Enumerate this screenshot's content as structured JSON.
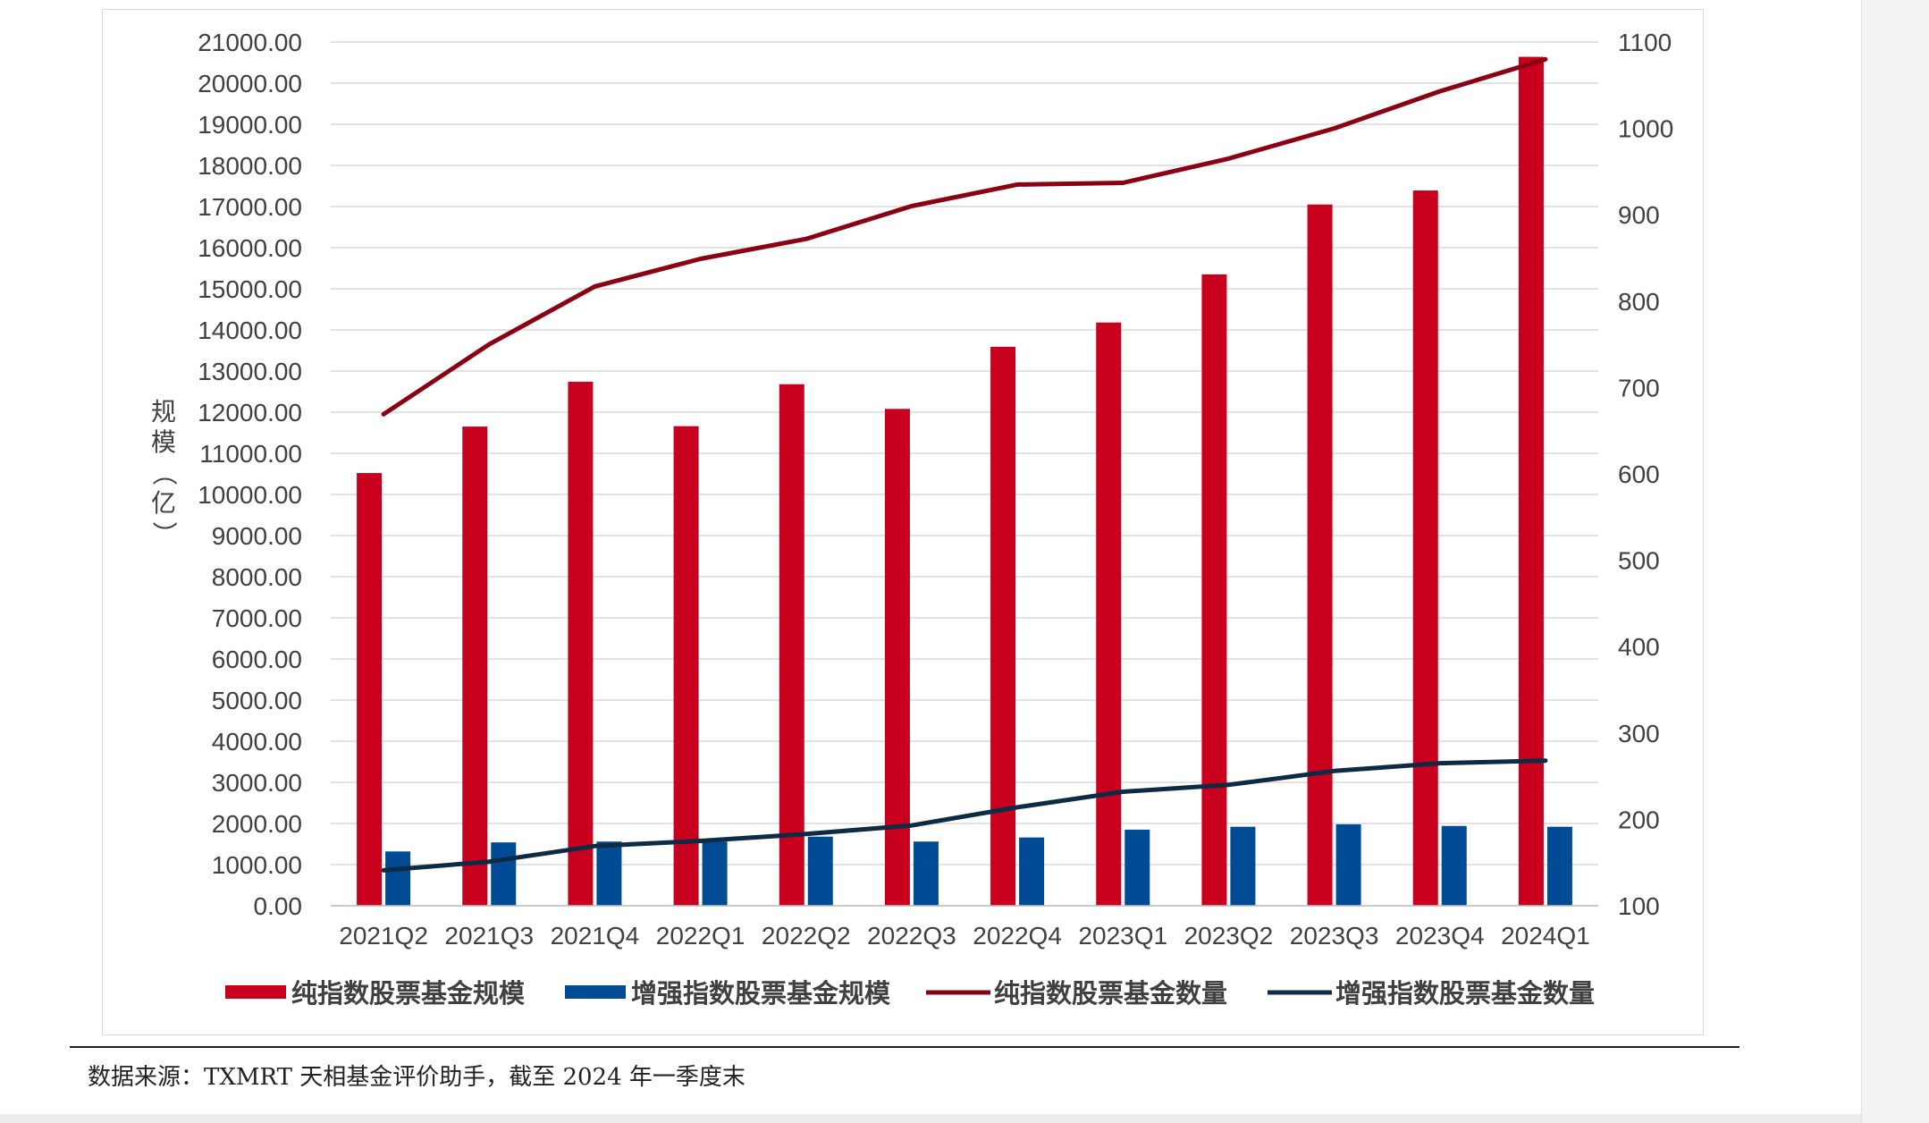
{
  "chart_data": {
    "type": "bar",
    "categories": [
      "2021Q2",
      "2021Q3",
      "2021Q4",
      "2022Q1",
      "2022Q2",
      "2022Q3",
      "2022Q4",
      "2023Q1",
      "2023Q2",
      "2023Q3",
      "2023Q4",
      "2024Q1"
    ],
    "series": [
      {
        "name": "纯指数股票基金规模",
        "kind": "bar",
        "axis": "left",
        "color": "#c8001e",
        "values": [
          10520,
          11650,
          12740,
          11660,
          12680,
          12080,
          13590,
          14180,
          15350,
          17050,
          17390,
          20640
        ]
      },
      {
        "name": "增强指数股票基金规模",
        "kind": "bar",
        "axis": "left",
        "color": "#004b93",
        "values": [
          1320,
          1540,
          1560,
          1560,
          1680,
          1560,
          1660,
          1850,
          1920,
          1980,
          1940,
          1920
        ]
      },
      {
        "name": "纯指数股票基金数量",
        "kind": "line",
        "axis": "right",
        "color": "#8b0012",
        "values": [
          669,
          750,
          817,
          849,
          872,
          910,
          935,
          937,
          965,
          1000,
          1043,
          1080
        ]
      },
      {
        "name": "增强指数股票基金数量",
        "kind": "line",
        "axis": "right",
        "color": "#0d2b45",
        "values": [
          141,
          151,
          169,
          175,
          183,
          193,
          214,
          232,
          240,
          256,
          265,
          268
        ]
      }
    ],
    "left_axis": {
      "title_chars": [
        "规",
        "模",
        "（",
        "亿",
        "）"
      ],
      "ylim": [
        0,
        21000
      ],
      "ticks": [
        "0.00",
        "1000.00",
        "2000.00",
        "3000.00",
        "4000.00",
        "5000.00",
        "6000.00",
        "7000.00",
        "8000.00",
        "9000.00",
        "10000.00",
        "11000.00",
        "12000.00",
        "13000.00",
        "14000.00",
        "15000.00",
        "16000.00",
        "17000.00",
        "18000.00",
        "19000.00",
        "20000.00",
        "21000.00"
      ]
    },
    "right_axis": {
      "ylim": [
        100,
        1100
      ],
      "ticks": [
        "100",
        "200",
        "300",
        "400",
        "500",
        "600",
        "700",
        "800",
        "900",
        "1000",
        "1100"
      ]
    },
    "grid": true,
    "legend_position": "bottom"
  },
  "source_note": "数据来源：TXMRT 天相基金评价助手，截至 2024 年一季度末"
}
